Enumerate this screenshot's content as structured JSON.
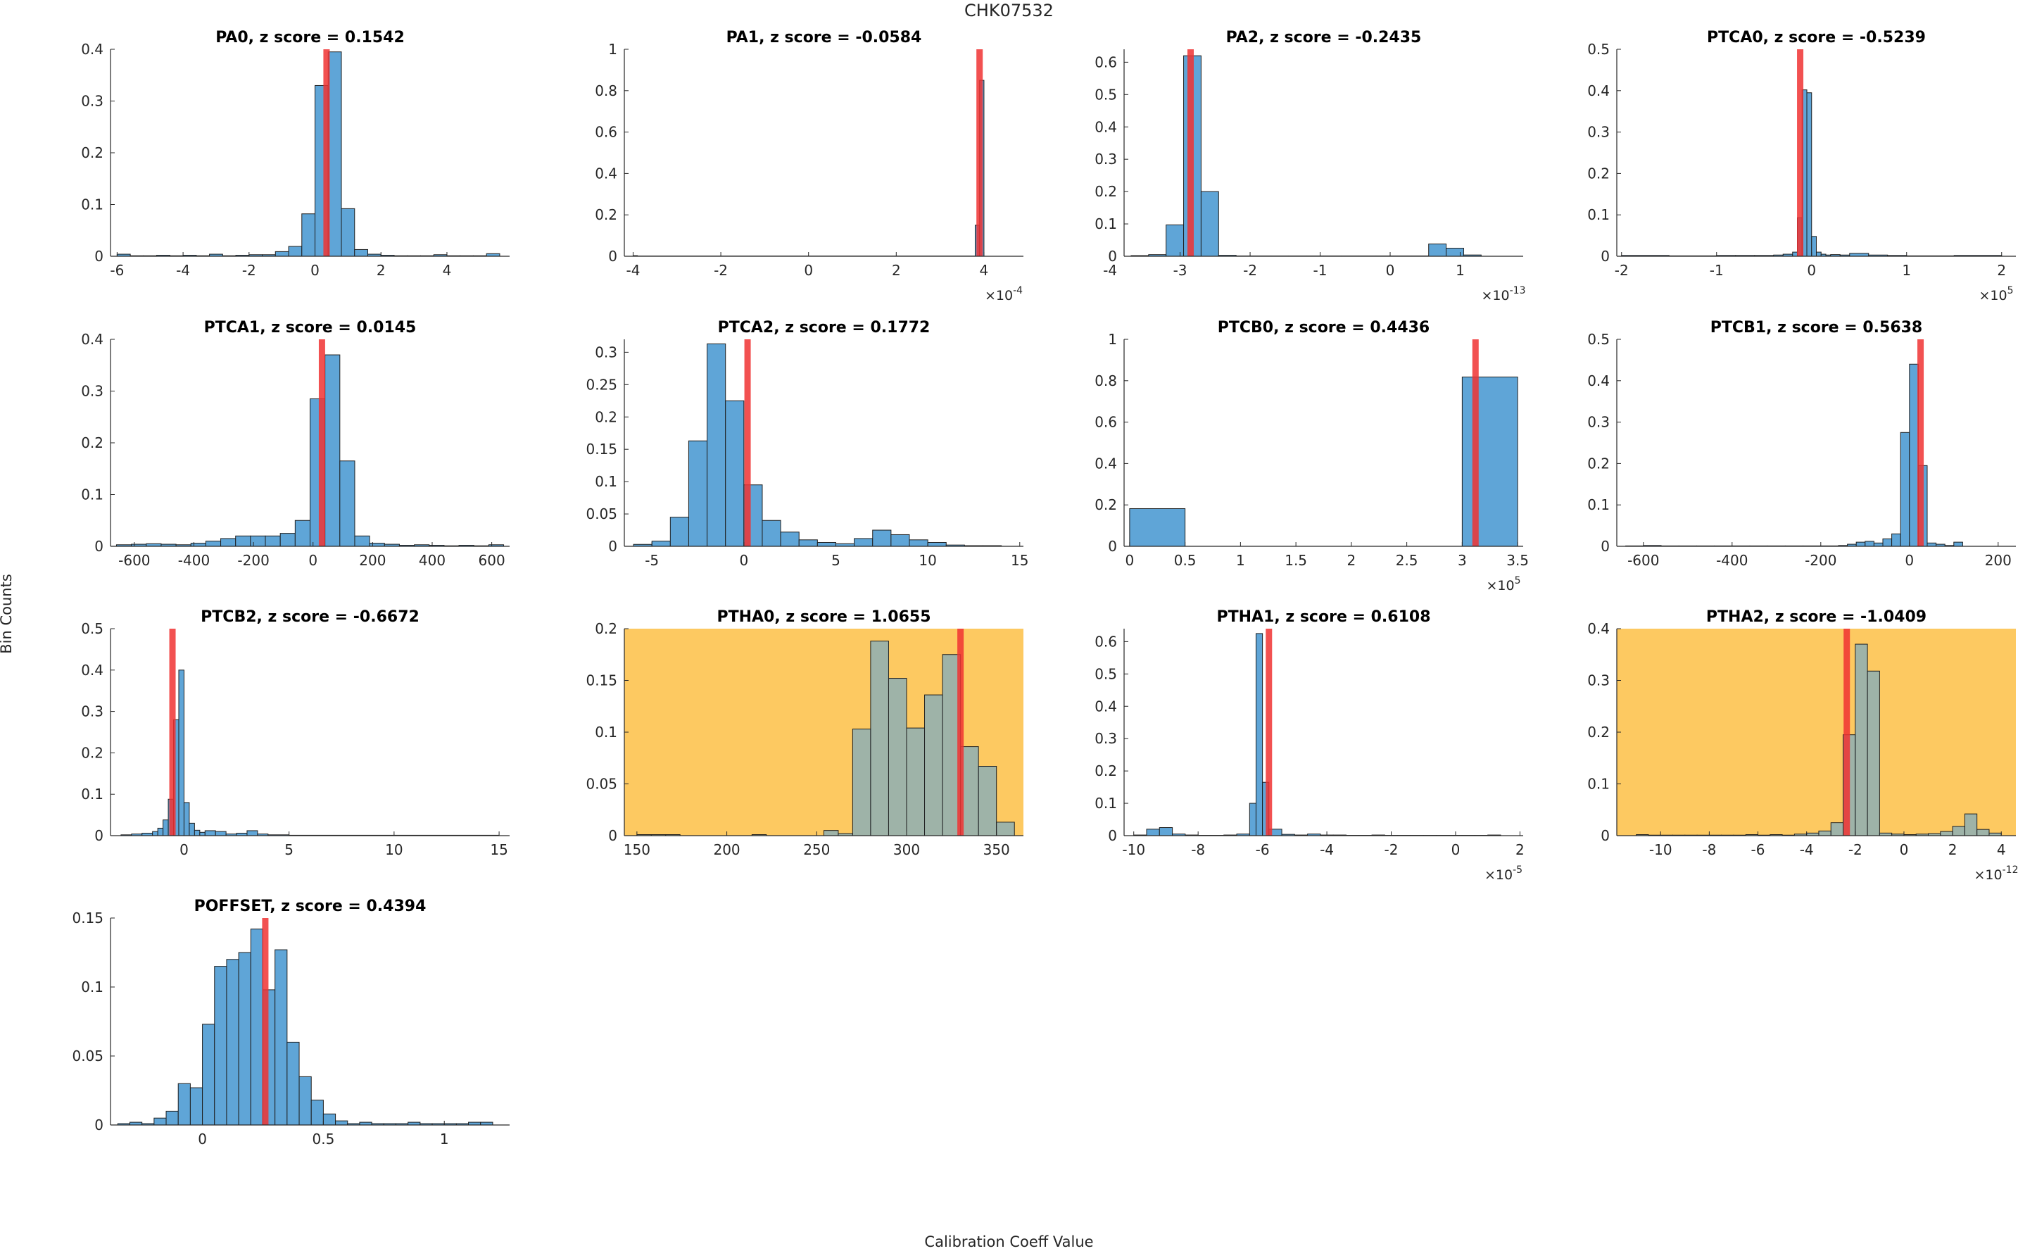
{
  "figure": {
    "title": "CHK07532",
    "xlabel": "Calibration Coeff Value",
    "ylabel": "Bin Counts"
  },
  "colors": {
    "bar": "#5fa5d7",
    "bar_edge": "#1f1f1f",
    "marker": "#f03232",
    "highlight_bg": "#fdc961",
    "axis": "#262626"
  },
  "chart_data": [
    {
      "type": "bar",
      "title": "PA0, z score = 0.1542",
      "highlight": false,
      "xlim": [
        -6.2,
        5.9
      ],
      "ylim": [
        0,
        0.4
      ],
      "xticks": [
        -6,
        -4,
        -2,
        0,
        2,
        4
      ],
      "xtick_labels": [
        "-6",
        "-4",
        "-2",
        "0",
        "2",
        "4"
      ],
      "yticks": [
        0,
        0.1,
        0.2,
        0.3,
        0.4
      ],
      "ytick_labels": [
        "0",
        "0.1",
        "0.2",
        "0.3",
        "0.4"
      ],
      "exponent": "",
      "bin_edges": [
        -6.0,
        -5.6,
        -5.2,
        -4.8,
        -4.4,
        -4.0,
        -3.6,
        -3.2,
        -2.8,
        -2.4,
        -2.0,
        -1.6,
        -1.2,
        -0.8,
        -0.4,
        0.0,
        0.4,
        0.8,
        1.2,
        1.6,
        2.0,
        2.4,
        2.8,
        3.2,
        3.6,
        4.0,
        4.4,
        4.8,
        5.2,
        5.6
      ],
      "values": [
        0.004,
        0.001,
        0.001,
        0.002,
        0.001,
        0.002,
        0.001,
        0.004,
        0.001,
        0.002,
        0.003,
        0.003,
        0.009,
        0.019,
        0.082,
        0.33,
        0.395,
        0.092,
        0.013,
        0.004,
        0.002,
        0.001,
        0.001,
        0.001,
        0.003,
        0.001,
        0.001,
        0.001,
        0.005
      ],
      "marker_value": 0.35
    },
    {
      "type": "bar",
      "title": "PA1, z score = -0.0584",
      "highlight": false,
      "xlim": [
        -4.2,
        4.9
      ],
      "ylim": [
        0,
        1
      ],
      "xticks": [
        -4,
        -2,
        0,
        2,
        4
      ],
      "xtick_labels": [
        "-4",
        "-2",
        "0",
        "2",
        "4"
      ],
      "yticks": [
        0,
        0.2,
        0.4,
        0.6,
        0.8,
        1
      ],
      "ytick_labels": [
        "0",
        "0.2",
        "0.4",
        "0.6",
        "0.8",
        "1"
      ],
      "exponent": "×10-4",
      "bin_edges": [
        -4.0,
        -3.9,
        3.8,
        3.9,
        4.0
      ],
      "values": [
        0.003,
        0.001,
        0.15,
        0.85
      ],
      "marker_value": 3.9
    },
    {
      "type": "bar",
      "title": "PA2, z score = -0.2435",
      "highlight": false,
      "xlim": [
        -3.8,
        1.9
      ],
      "ylim": [
        0,
        0.64
      ],
      "xticks": [
        -4,
        -3,
        -2,
        -1,
        0,
        1
      ],
      "xtick_labels": [
        "-4",
        "-3",
        "-2",
        "-1",
        "0",
        "1"
      ],
      "yticks": [
        0,
        0.1,
        0.2,
        0.3,
        0.4,
        0.5,
        0.6
      ],
      "ytick_labels": [
        "0",
        "0.1",
        "0.2",
        "0.3",
        "0.4",
        "0.5",
        "0.6"
      ],
      "exponent": "×10-13",
      "bin_edges": [
        -3.7,
        -3.45,
        -3.2,
        -2.95,
        -2.7,
        -2.45,
        -2.2,
        -1.95,
        -1.7,
        -1.45,
        -1.2,
        -0.95,
        -0.7,
        -0.45,
        -0.2,
        0.05,
        0.3,
        0.55,
        0.8,
        1.05,
        1.3
      ],
      "values": [
        0.002,
        0.005,
        0.097,
        0.62,
        0.2,
        0.003,
        0.001,
        0.001,
        0.001,
        0.001,
        0.001,
        0.001,
        0.001,
        0.001,
        0.001,
        0.001,
        0.001,
        0.038,
        0.025,
        0.004
      ],
      "marker_value": -2.85
    },
    {
      "type": "bar",
      "title": "PTCA0, z score = -0.5239",
      "highlight": false,
      "xlim": [
        -2.05,
        2.15
      ],
      "ylim": [
        0,
        0.5
      ],
      "xticks": [
        -2,
        -1,
        0,
        1,
        2
      ],
      "xtick_labels": [
        "-2",
        "-1",
        "0",
        "1",
        "2"
      ],
      "yticks": [
        0,
        0.1,
        0.2,
        0.3,
        0.4,
        0.5
      ],
      "ytick_labels": [
        "0",
        "0.1",
        "0.2",
        "0.3",
        "0.4",
        "0.5"
      ],
      "exponent": "×10^5",
      "bin_edges": [
        -2.0,
        -1.5,
        -1.0,
        -0.8,
        -0.6,
        -0.4,
        -0.3,
        -0.2,
        -0.15,
        -0.1,
        -0.05,
        0.0,
        0.05,
        0.1,
        0.15,
        0.2,
        0.3,
        0.4,
        0.6,
        0.8,
        1.0,
        1.5,
        2.0
      ],
      "values": [
        0.002,
        0.001,
        0.002,
        0.002,
        0.002,
        0.003,
        0.005,
        0.01,
        0.093,
        0.402,
        0.395,
        0.048,
        0.01,
        0.005,
        0.003,
        0.004,
        0.003,
        0.007,
        0.003,
        0.002,
        0.001,
        0.002
      ],
      "marker_value": -0.12
    },
    {
      "type": "bar",
      "title": "PTCA1, z score = 0.0145",
      "highlight": false,
      "xlim": [
        -680,
        660
      ],
      "ylim": [
        0,
        0.4
      ],
      "xticks": [
        -600,
        -400,
        -200,
        0,
        200,
        400,
        600
      ],
      "xtick_labels": [
        "-600",
        "-400",
        "-200",
        "0",
        "200",
        "400",
        "600"
      ],
      "yticks": [
        0,
        0.1,
        0.2,
        0.3,
        0.4
      ],
      "ytick_labels": [
        "0",
        "0.1",
        "0.2",
        "0.3",
        "0.4"
      ],
      "exponent": "",
      "bin_edges": [
        -660,
        -610,
        -560,
        -510,
        -460,
        -410,
        -360,
        -310,
        -260,
        -210,
        -160,
        -110,
        -60,
        -10,
        40,
        90,
        140,
        190,
        240,
        290,
        340,
        390,
        440,
        490,
        540,
        590,
        640
      ],
      "values": [
        0.003,
        0.004,
        0.005,
        0.004,
        0.003,
        0.006,
        0.01,
        0.015,
        0.02,
        0.02,
        0.02,
        0.025,
        0.05,
        0.285,
        0.37,
        0.165,
        0.02,
        0.006,
        0.004,
        0.002,
        0.003,
        0.002,
        0.001,
        0.002,
        0.001,
        0.003
      ],
      "marker_value": 30
    },
    {
      "type": "bar",
      "title": "PTCA2, z score = 0.1772",
      "highlight": false,
      "xlim": [
        -6.5,
        15.2
      ],
      "ylim": [
        0,
        0.32
      ],
      "xticks": [
        -5,
        0,
        5,
        10,
        15
      ],
      "xtick_labels": [
        "-5",
        "0",
        "5",
        "10",
        "15"
      ],
      "yticks": [
        0,
        0.05,
        0.1,
        0.15,
        0.2,
        0.25,
        0.3
      ],
      "ytick_labels": [
        "0",
        "0.05",
        "0.1",
        "0.15",
        "0.2",
        "0.25",
        "0.3"
      ],
      "exponent": "",
      "bin_edges": [
        -6.0,
        -5.0,
        -4.0,
        -3.0,
        -2.0,
        -1.0,
        0.0,
        1.0,
        2.0,
        3.0,
        4.0,
        5.0,
        6.0,
        7.0,
        8.0,
        9.0,
        10.0,
        11.0,
        12.0,
        13.0,
        14.0
      ],
      "values": [
        0.003,
        0.008,
        0.045,
        0.163,
        0.313,
        0.225,
        0.095,
        0.04,
        0.022,
        0.01,
        0.006,
        0.004,
        0.012,
        0.025,
        0.018,
        0.01,
        0.006,
        0.002,
        0.001,
        0.001
      ],
      "marker_value": 0.2
    },
    {
      "type": "bar",
      "title": "PTCB0, z score = 0.4436",
      "highlight": false,
      "xlim": [
        -0.05,
        3.55
      ],
      "ylim": [
        0,
        1
      ],
      "xticks": [
        0,
        0.5,
        1,
        1.5,
        2,
        2.5,
        3,
        3.5
      ],
      "xtick_labels": [
        "0",
        "0.5",
        "1",
        "1.5",
        "2",
        "2.5",
        "3",
        "3.5"
      ],
      "yticks": [
        0,
        0.2,
        0.4,
        0.6,
        0.8,
        1
      ],
      "ytick_labels": [
        "0",
        "0.2",
        "0.4",
        "0.6",
        "0.8",
        "1"
      ],
      "exponent": "×10^5",
      "bin_edges": [
        0.0,
        0.5,
        3.0,
        3.5
      ],
      "values": [
        0.182,
        0.0,
        0.818
      ],
      "marker_value": 3.12
    },
    {
      "type": "bar",
      "title": "PTCB1, z score = 0.5638",
      "highlight": false,
      "xlim": [
        -660,
        240
      ],
      "ylim": [
        0,
        0.5
      ],
      "xticks": [
        -600,
        -400,
        -200,
        0,
        200
      ],
      "xtick_labels": [
        "-600",
        "-400",
        "-200",
        "0",
        "200"
      ],
      "yticks": [
        0,
        0.1,
        0.2,
        0.3,
        0.4,
        0.5
      ],
      "ytick_labels": [
        "0",
        "0.1",
        "0.2",
        "0.3",
        "0.4",
        "0.5"
      ],
      "exponent": "",
      "bin_edges": [
        -640,
        -600,
        -560,
        -520,
        -480,
        -440,
        -400,
        -360,
        -320,
        -280,
        -240,
        -200,
        -160,
        -140,
        -120,
        -100,
        -80,
        -60,
        -40,
        -20,
        0,
        20,
        40,
        60,
        80,
        100,
        120
      ],
      "values": [
        0.001,
        0.002,
        0.001,
        0.001,
        0.001,
        0.001,
        0.001,
        0.001,
        0.001,
        0.001,
        0.001,
        0.001,
        0.002,
        0.005,
        0.01,
        0.012,
        0.008,
        0.018,
        0.03,
        0.275,
        0.44,
        0.195,
        0.008,
        0.005,
        0.002,
        0.01
      ],
      "marker_value": 25
    },
    {
      "type": "bar",
      "title": "PTCB2, z score = -0.6672",
      "highlight": false,
      "xlim": [
        -3.5,
        15.5
      ],
      "ylim": [
        0,
        0.5
      ],
      "xticks": [
        0,
        5,
        10,
        15
      ],
      "xtick_labels": [
        "0",
        "5",
        "10",
        "15"
      ],
      "yticks": [
        0,
        0.1,
        0.2,
        0.3,
        0.4,
        0.5
      ],
      "ytick_labels": [
        "0",
        "0.1",
        "0.2",
        "0.3",
        "0.4",
        "0.5"
      ],
      "exponent": "",
      "bin_edges": [
        -3.0,
        -2.5,
        -2.0,
        -1.5,
        -1.25,
        -1.0,
        -0.75,
        -0.5,
        -0.25,
        0.0,
        0.25,
        0.5,
        0.75,
        1.0,
        1.5,
        2.0,
        2.5,
        3.0,
        3.5,
        4.0,
        5.0,
        10.0,
        15.0
      ],
      "values": [
        0.002,
        0.004,
        0.006,
        0.01,
        0.018,
        0.038,
        0.088,
        0.28,
        0.4,
        0.08,
        0.03,
        0.013,
        0.008,
        0.012,
        0.01,
        0.004,
        0.006,
        0.012,
        0.004,
        0.002,
        0.001,
        0.001
      ],
      "marker_value": -0.55
    },
    {
      "type": "bar",
      "title": "PTHA0, z score = 1.0655",
      "highlight": true,
      "xlim": [
        143,
        365
      ],
      "ylim": [
        0,
        0.2
      ],
      "xticks": [
        150,
        200,
        250,
        300,
        350
      ],
      "xtick_labels": [
        "150",
        "200",
        "250",
        "300",
        "350"
      ],
      "yticks": [
        0,
        0.05,
        0.1,
        0.15,
        0.2
      ],
      "ytick_labels": [
        "0",
        "0.05",
        "0.1",
        "0.15",
        "0.2"
      ],
      "exponent": "",
      "bin_edges": [
        150,
        158,
        166,
        174,
        182,
        190,
        198,
        206,
        214,
        222,
        230,
        238,
        246,
        254,
        262,
        270,
        280,
        290,
        300,
        310,
        320,
        330,
        340,
        350,
        360
      ],
      "values": [
        0.001,
        0.001,
        0.001,
        0.0,
        0.0,
        0.0,
        0.0,
        0.0,
        0.001,
        0.0,
        0.0,
        0.0,
        0.0,
        0.005,
        0.002,
        0.103,
        0.188,
        0.152,
        0.104,
        0.136,
        0.175,
        0.086,
        0.067,
        0.013
      ],
      "marker_value": 330
    },
    {
      "type": "bar",
      "title": "PTHA1, z score = 0.6108",
      "highlight": false,
      "xlim": [
        -10.3,
        2.1
      ],
      "ylim": [
        0,
        0.64
      ],
      "xticks": [
        -10,
        -8,
        -6,
        -4,
        -2,
        0,
        2
      ],
      "xtick_labels": [
        "-10",
        "-8",
        "-6",
        "-4",
        "-2",
        "0",
        "2"
      ],
      "yticks": [
        0,
        0.1,
        0.2,
        0.3,
        0.4,
        0.5,
        0.6
      ],
      "ytick_labels": [
        "0",
        "0.1",
        "0.2",
        "0.3",
        "0.4",
        "0.5",
        "0.6"
      ],
      "exponent": "×10-5",
      "bin_edges": [
        -10.0,
        -9.6,
        -9.2,
        -8.8,
        -8.4,
        -8.0,
        -7.6,
        -7.2,
        -6.8,
        -6.4,
        -6.2,
        -6.0,
        -5.8,
        -5.4,
        -5.0,
        -4.6,
        -4.2,
        -3.8,
        -3.4,
        -3.0,
        -2.6,
        -2.2,
        -1.8,
        -1.4,
        -1.0,
        -0.6,
        -0.2,
        0.2,
        0.6,
        1.0,
        1.4
      ],
      "values": [
        0.002,
        0.02,
        0.025,
        0.005,
        0.002,
        0.001,
        0.001,
        0.002,
        0.005,
        0.1,
        0.625,
        0.165,
        0.02,
        0.004,
        0.002,
        0.005,
        0.002,
        0.002,
        0.001,
        0.001,
        0.002,
        0.001,
        0.001,
        0.001,
        0.001,
        0.001,
        0.001,
        0.001,
        0.001,
        0.002
      ],
      "marker_value": -5.8
    },
    {
      "type": "bar",
      "title": "PTHA2, z score = -1.0409",
      "highlight": true,
      "xlim": [
        -11.8,
        4.6
      ],
      "ylim": [
        0,
        0.4
      ],
      "xticks": [
        -10,
        -8,
        -6,
        -4,
        -2,
        0,
        2,
        4
      ],
      "xtick_labels": [
        "-10",
        "-8",
        "-6",
        "-4",
        "-2",
        "0",
        "2",
        "4"
      ],
      "yticks": [
        0,
        0.1,
        0.2,
        0.3,
        0.4
      ],
      "ytick_labels": [
        "0",
        "0.1",
        "0.2",
        "0.3",
        "0.4"
      ],
      "exponent": "×10-12",
      "bin_edges": [
        -11.0,
        -10.5,
        -10.0,
        -9.5,
        -9.0,
        -8.5,
        -8.0,
        -7.5,
        -7.0,
        -6.5,
        -6.0,
        -5.5,
        -5.0,
        -4.5,
        -4.0,
        -3.5,
        -3.0,
        -2.5,
        -2.0,
        -1.5,
        -1.0,
        -0.5,
        0.0,
        0.5,
        1.0,
        1.5,
        2.0,
        2.5,
        3.0,
        3.5,
        4.0
      ],
      "values": [
        0.002,
        0.001,
        0.001,
        0.001,
        0.001,
        0.001,
        0.001,
        0.001,
        0.001,
        0.002,
        0.001,
        0.002,
        0.001,
        0.003,
        0.005,
        0.009,
        0.025,
        0.195,
        0.37,
        0.318,
        0.005,
        0.003,
        0.002,
        0.003,
        0.004,
        0.008,
        0.018,
        0.042,
        0.012,
        0.005
      ],
      "marker_value": -2.35
    },
    {
      "type": "bar",
      "title": "POFFSET, z score = 0.4394",
      "highlight": false,
      "xlim": [
        -0.38,
        1.27
      ],
      "ylim": [
        0,
        0.15
      ],
      "xticks": [
        0,
        0.5,
        1
      ],
      "xtick_labels": [
        "0",
        "0.5",
        "1"
      ],
      "yticks": [
        0,
        0.05,
        0.1,
        0.15
      ],
      "ytick_labels": [
        "0",
        "0.05",
        "0.1",
        "0.15"
      ],
      "exponent": "",
      "bin_edges": [
        -0.35,
        -0.3,
        -0.25,
        -0.2,
        -0.15,
        -0.1,
        -0.05,
        0.0,
        0.05,
        0.1,
        0.15,
        0.2,
        0.25,
        0.3,
        0.35,
        0.4,
        0.45,
        0.5,
        0.55,
        0.6,
        0.65,
        0.7,
        0.75,
        0.8,
        0.85,
        0.9,
        0.95,
        1.0,
        1.05,
        1.1,
        1.15,
        1.2
      ],
      "values": [
        0.001,
        0.002,
        0.001,
        0.005,
        0.01,
        0.03,
        0.027,
        0.073,
        0.115,
        0.12,
        0.125,
        0.142,
        0.098,
        0.127,
        0.06,
        0.035,
        0.018,
        0.008,
        0.003,
        0.001,
        0.002,
        0.001,
        0.001,
        0.001,
        0.002,
        0.001,
        0.001,
        0.001,
        0.001,
        0.002,
        0.002
      ],
      "marker_value": 0.26
    }
  ]
}
